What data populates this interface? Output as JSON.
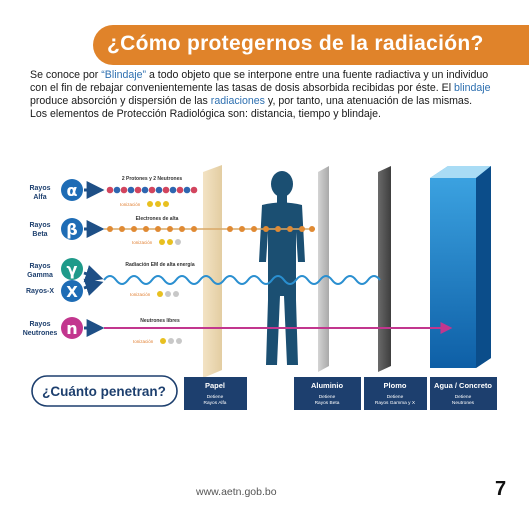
{
  "banner": {
    "title": "¿Cómo protegernos de la radiación?"
  },
  "intro": {
    "part1": "Se conoce por ",
    "term_quote": "“Blindaje”",
    "part2": " a todo objeto que se interpone entre una fuente radiactiva y un individuo con el fin de rebajar convenientemente las tasas de dosis absorbida recibidas por éste. El ",
    "term_blindaje": "blindaje",
    "part3": " produce absorción y dispersión de las ",
    "term_radiaciones": "radiaciones",
    "part4": " y, por tanto, una atenuación de las mismas.",
    "line2": "Los elementos de Protección Radiológica son: distancia, tiempo y blindaje."
  },
  "diagram": {
    "alpha": {
      "name_line1": "Rayos",
      "name_line2": "Alfa",
      "symbol": "α",
      "caption": "2 Protones y 2 Neutrones",
      "tag": "Ionización"
    },
    "beta": {
      "name_line1": "Rayos",
      "name_line2": "Beta",
      "symbol": "β",
      "caption": "Electrones de alta",
      "tag": "Ionización"
    },
    "gamma": {
      "name_line1": "Rayos",
      "name_line2": "Gamma",
      "symbol": "γ",
      "caption": "Radiación EM de alta energía",
      "tag": "Ionización"
    },
    "xray": {
      "name": "Rayos-X",
      "symbol": "X"
    },
    "neutron": {
      "name_line1": "Rayos",
      "name_line2": "Neutrones",
      "symbol": "n",
      "caption": "Neutrones libres",
      "tag": "Ionización"
    },
    "question": "¿Cuánto penetran?",
    "shields": [
      {
        "title": "Papel",
        "sub1": "Detiene",
        "sub2": "Rayos Alfa"
      },
      {
        "title": "Aluminio",
        "sub1": "Detiene",
        "sub2": "Rayos Beta"
      },
      {
        "title": "Plomo",
        "sub1": "Detiene",
        "sub2": "Rayos Gamma y X"
      },
      {
        "title": "Agua / Concreto",
        "sub1": "Detiene",
        "sub2": "Neutrones"
      }
    ],
    "colors": {
      "alpha_circle": "#1e6cb5",
      "beta_circle": "#1e6cb5",
      "gamma_circle": "#1f9a8a",
      "xray_circle": "#1e6cb5",
      "neutron_circle": "#c2368e",
      "label_box": "#1d3f6e",
      "person": "#1b4f72"
    }
  },
  "footer": {
    "url": "www.aetn.gob.bo",
    "page": "7"
  }
}
